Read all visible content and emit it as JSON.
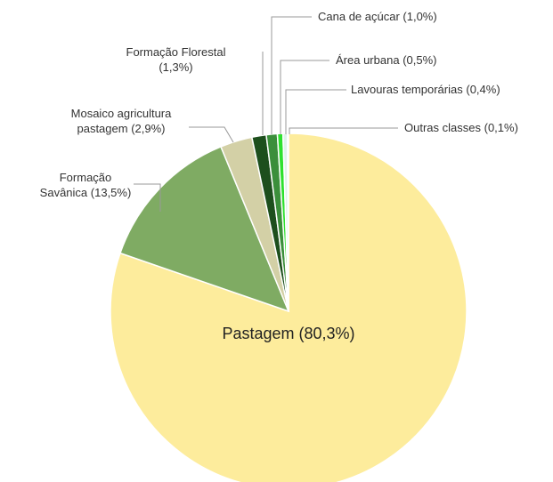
{
  "chart_data": {
    "type": "pie",
    "categories": [
      "Pastagem",
      "Formação Savânica",
      "Mosaico agricultura pastagem",
      "Formação Florestal",
      "Cana de açúcar",
      "Área urbana",
      "Lavouras temporárias",
      "Outras classes"
    ],
    "values": [
      80.3,
      13.5,
      2.9,
      1.3,
      1.0,
      0.5,
      0.4,
      0.1
    ],
    "value_labels": [
      "(80,3%)",
      "(13,5%)",
      "(2,9%)",
      "(1,3%)",
      "(1,0%)",
      "(0,5%)",
      "(0,4%)",
      "(0,1%)"
    ],
    "colors": [
      "#fdec9c",
      "#7fab63",
      "#d3d0a6",
      "#1d4f1d",
      "#3b8f3b",
      "#2ee02e",
      "#dff3ea",
      "#ff5a26"
    ]
  }
}
